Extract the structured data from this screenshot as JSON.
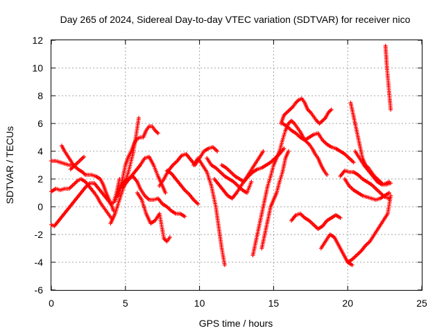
{
  "chart_data": {
    "type": "scatter",
    "title": "Day 265 of 2024, Sidereal Day-to-day VTEC variation (SDTVAR) for receiver nico",
    "xlabel": "GPS time / hours",
    "ylabel": "SDTVAR / TECUs",
    "xlim": [
      0,
      25
    ],
    "ylim": [
      -6,
      12
    ],
    "xticks": [
      0,
      5,
      10,
      15,
      20,
      25
    ],
    "yticks": [
      -6,
      -4,
      -2,
      0,
      2,
      4,
      6,
      8,
      10,
      12
    ],
    "xtick_labels": [
      "0",
      "5",
      "10",
      "15",
      "20",
      "25"
    ],
    "ytick_labels": [
      "-6",
      "-4",
      "-2",
      "0",
      "2",
      "4",
      "6",
      "8",
      "10",
      "12"
    ],
    "grid": true,
    "marker": "+",
    "color": "#ff0000",
    "series": [
      {
        "name": "s1",
        "x": [
          0.0,
          0.3,
          0.6,
          0.9,
          1.2,
          1.4
        ],
        "y": [
          3.3,
          3.3,
          3.2,
          3.1,
          3.0,
          3.0
        ]
      },
      {
        "name": "s2",
        "x": [
          0.7,
          0.9,
          1.2,
          1.5,
          1.8,
          2.1,
          2.3,
          2.7,
          3.0,
          3.3,
          3.5,
          3.7,
          3.9,
          4.1,
          4.2
        ],
        "y": [
          4.4,
          4.0,
          3.5,
          3.0,
          2.7,
          2.5,
          2.3,
          2.3,
          2.2,
          2.0,
          1.6,
          1.0,
          0.5,
          0.0,
          -0.3
        ]
      },
      {
        "name": "s3",
        "x": [
          1.3,
          1.6,
          1.9,
          2.2
        ],
        "y": [
          2.7,
          3.0,
          3.3,
          3.6
        ]
      },
      {
        "name": "s4",
        "x": [
          0.0,
          0.3,
          0.6,
          0.9,
          1.2,
          1.5,
          1.8,
          2.0,
          2.3,
          2.6,
          2.9,
          3.1,
          3.3,
          3.5,
          3.7,
          3.9,
          4.1
        ],
        "y": [
          1.1,
          1.3,
          1.2,
          1.3,
          1.3,
          1.6,
          1.9,
          2.0,
          1.8,
          1.4,
          1.0,
          0.7,
          0.3,
          0.0,
          -0.3,
          -0.6,
          -0.9
        ]
      },
      {
        "name": "s5",
        "x": [
          0.0,
          0.2,
          0.5,
          0.8,
          1.1,
          1.4,
          1.7,
          2.0,
          2.3,
          2.6,
          2.9,
          3.2,
          3.5,
          3.8,
          4.0,
          4.2,
          4.4,
          4.6
        ],
        "y": [
          -1.3,
          -1.4,
          -1.0,
          -0.6,
          -0.2,
          0.2,
          0.6,
          1.0,
          1.4,
          1.7,
          1.7,
          1.3,
          0.9,
          0.5,
          0.2,
          0.3,
          1.0,
          2.0
        ]
      },
      {
        "name": "s6",
        "x": [
          4.0,
          4.3,
          4.6,
          4.9,
          5.2,
          5.5,
          5.7,
          5.9
        ],
        "y": [
          -1.2,
          -0.5,
          0.5,
          1.5,
          2.5,
          3.8,
          5.0,
          6.4
        ]
      },
      {
        "name": "s7",
        "x": [
          4.3,
          4.6,
          4.9,
          5.2,
          5.5,
          5.8,
          6.0,
          6.3,
          6.6,
          6.9,
          7.2,
          7.5,
          7.8,
          8.1,
          8.4,
          8.7,
          9.0
        ],
        "y": [
          0.4,
          1.2,
          1.8,
          2.0,
          2.2,
          1.8,
          1.3,
          0.8,
          0.5,
          0.5,
          0.6,
          0.2,
          0.0,
          -0.3,
          -0.5,
          -0.5,
          -0.7
        ]
      },
      {
        "name": "s8",
        "x": [
          4.5,
          4.8,
          5.0,
          5.2,
          5.4,
          5.6,
          5.8,
          6.0,
          6.2,
          6.4,
          6.6,
          6.8,
          7.0,
          7.2
        ],
        "y": [
          0.8,
          2.0,
          3.0,
          3.6,
          4.0,
          4.6,
          4.9,
          5.0,
          5.0,
          5.5,
          5.8,
          5.8,
          5.5,
          5.3
        ]
      },
      {
        "name": "s9",
        "x": [
          4.8,
          5.1,
          5.4,
          5.7,
          6.0,
          6.3,
          6.6,
          6.9,
          7.2,
          7.5,
          7.7
        ],
        "y": [
          1.3,
          1.8,
          2.2,
          2.6,
          3.0,
          3.5,
          3.6,
          3.0,
          2.2,
          1.5,
          1.0
        ]
      },
      {
        "name": "s10",
        "x": [
          5.8,
          6.1,
          6.4,
          6.7,
          7.0,
          7.3,
          7.6,
          7.8,
          8.0
        ],
        "y": [
          1.0,
          0.5,
          -0.5,
          -1.2,
          -1.0,
          -0.5,
          -2.3,
          -2.5,
          -2.2
        ]
      },
      {
        "name": "s11",
        "x": [
          7.3,
          7.6,
          7.9,
          8.2,
          8.5,
          8.8,
          9.1,
          9.4,
          9.7,
          10.0,
          10.3,
          10.6,
          10.9,
          11.2
        ],
        "y": [
          1.5,
          2.0,
          2.6,
          3.0,
          3.3,
          3.7,
          3.8,
          3.4,
          3.0,
          3.5,
          4.0,
          4.2,
          4.3,
          4.0
        ]
      },
      {
        "name": "s12",
        "x": [
          7.8,
          8.1,
          8.4,
          8.7,
          9.0,
          9.3,
          9.6,
          9.9
        ],
        "y": [
          2.6,
          2.4,
          2.0,
          1.6,
          1.2,
          0.9,
          0.5,
          0.2
        ]
      },
      {
        "name": "s13",
        "x": [
          9.6,
          9.9,
          10.2,
          10.5,
          10.8,
          11.1,
          11.3,
          11.5,
          11.7
        ],
        "y": [
          3.0,
          3.5,
          3.0,
          2.5,
          1.5,
          0.0,
          -1.5,
          -3.0,
          -4.2
        ]
      },
      {
        "name": "s14",
        "x": [
          10.5,
          10.8,
          11.1,
          11.4,
          11.7,
          12.0,
          12.3,
          12.6,
          12.9,
          13.2,
          13.5
        ],
        "y": [
          3.5,
          3.0,
          2.8,
          2.5,
          2.2,
          2.0,
          1.8,
          1.5,
          1.2,
          1.0,
          1.8
        ]
      },
      {
        "name": "s15",
        "x": [
          11.0,
          11.3,
          11.6,
          11.9,
          12.2,
          12.5,
          12.8,
          13.1,
          13.4,
          13.7,
          14.0,
          14.3
        ],
        "y": [
          2.0,
          1.6,
          1.2,
          0.8,
          0.6,
          1.0,
          1.5,
          2.0,
          2.5,
          3.0,
          3.5,
          4.0
        ]
      },
      {
        "name": "s16",
        "x": [
          11.5,
          11.8,
          12.1,
          12.4,
          12.7,
          13.0,
          13.3,
          13.6,
          13.9,
          14.2,
          14.5,
          14.8,
          15.1,
          15.4,
          15.7
        ],
        "y": [
          3.0,
          2.8,
          2.5,
          2.2,
          2.0,
          1.8,
          2.2,
          2.5,
          2.7,
          2.8,
          3.0,
          3.2,
          3.5,
          3.8,
          4.2
        ]
      },
      {
        "name": "s17",
        "x": [
          13.6,
          13.8,
          14.0,
          14.2,
          14.4,
          14.6,
          14.8,
          15.0,
          15.2,
          15.4,
          15.6,
          15.8
        ],
        "y": [
          -3.5,
          -2.5,
          -1.5,
          -0.5,
          0.5,
          1.5,
          2.2,
          3.0,
          3.5,
          4.0,
          4.8,
          5.5
        ]
      },
      {
        "name": "s18",
        "x": [
          14.2,
          14.4,
          14.6,
          14.8,
          15.0,
          15.2,
          15.4,
          15.6,
          15.8,
          16.0
        ],
        "y": [
          -3.0,
          -2.0,
          -1.0,
          0.0,
          0.5,
          1.0,
          1.8,
          2.5,
          3.5,
          4.0
        ]
      },
      {
        "name": "s19",
        "x": [
          15.5,
          15.7,
          15.9,
          16.1,
          16.3,
          16.5,
          16.7,
          16.9,
          17.1,
          17.3,
          17.5,
          17.7,
          17.9,
          18.1,
          18.3,
          18.5,
          18.7,
          18.9
        ],
        "y": [
          6.0,
          6.6,
          6.8,
          7.0,
          7.2,
          7.5,
          7.7,
          7.8,
          7.5,
          7.0,
          6.8,
          6.5,
          6.2,
          6.0,
          6.2,
          6.4,
          6.8,
          7.0
        ]
      },
      {
        "name": "s20",
        "x": [
          15.6,
          15.9,
          16.2,
          16.5,
          16.8,
          17.1,
          17.4,
          17.7,
          18.0,
          18.3,
          18.6,
          18.9,
          19.2,
          19.5,
          19.8,
          20.1,
          20.4
        ],
        "y": [
          6.0,
          5.8,
          5.5,
          5.3,
          5.0,
          4.8,
          5.0,
          5.2,
          5.3,
          4.8,
          4.5,
          4.3,
          4.2,
          4.0,
          3.8,
          3.5,
          3.2
        ]
      },
      {
        "name": "s21",
        "x": [
          15.8,
          16.0,
          16.2,
          16.4,
          16.6,
          16.8,
          17.0,
          17.2,
          17.4,
          17.6,
          17.8,
          18.0,
          18.2,
          18.4,
          18.6
        ],
        "y": [
          5.5,
          6.0,
          6.2,
          6.0,
          5.7,
          5.4,
          5.0,
          4.7,
          4.5,
          4.2,
          3.8,
          3.5,
          3.0,
          2.6,
          2.3
        ]
      },
      {
        "name": "s22",
        "x": [
          16.2,
          16.5,
          16.8,
          17.1,
          17.4,
          17.7,
          18.0,
          18.3,
          18.6,
          18.9,
          19.2,
          19.5
        ],
        "y": [
          -1.0,
          -0.6,
          -0.5,
          -0.8,
          -1.0,
          -1.3,
          -1.6,
          -1.4,
          -1.0,
          -0.8,
          -0.6,
          -0.8
        ]
      },
      {
        "name": "s23",
        "x": [
          18.2,
          18.5,
          18.8,
          19.1,
          19.4,
          19.7,
          20.0,
          20.3
        ],
        "y": [
          -3.0,
          -2.5,
          -2.0,
          -2.2,
          -2.8,
          -3.4,
          -4.0,
          -4.2
        ]
      },
      {
        "name": "s24",
        "x": [
          19.5,
          19.8,
          20.1,
          20.4,
          20.7,
          21.0,
          21.3,
          21.6,
          21.9,
          22.2,
          22.5,
          22.8
        ],
        "y": [
          2.2,
          2.6,
          2.5,
          2.5,
          2.3,
          2.0,
          1.8,
          1.6,
          1.3,
          1.0,
          0.7,
          0.6
        ]
      },
      {
        "name": "s25",
        "x": [
          19.8,
          20.1,
          20.4,
          20.7,
          21.0,
          21.3,
          21.6,
          21.9,
          22.2,
          22.5,
          22.8
        ],
        "y": [
          2.0,
          1.5,
          1.2,
          1.0,
          0.8,
          0.7,
          0.6,
          0.5,
          0.6,
          0.8,
          1.0
        ]
      },
      {
        "name": "s26",
        "x": [
          20.0,
          20.3,
          20.6,
          20.9,
          21.2,
          21.5,
          21.8,
          22.1,
          22.4,
          22.7,
          22.9
        ],
        "y": [
          -4.0,
          -3.8,
          -3.5,
          -3.2,
          -2.8,
          -2.5,
          -2.0,
          -1.5,
          -1.0,
          -0.5,
          0.8
        ]
      },
      {
        "name": "s27",
        "x": [
          20.2,
          20.4,
          20.6,
          20.8,
          21.0,
          21.2,
          21.4,
          21.6,
          21.8,
          22.0,
          22.2,
          22.4,
          22.6,
          22.8
        ],
        "y": [
          7.5,
          6.5,
          5.5,
          4.5,
          3.5,
          3.0,
          2.8,
          2.5,
          2.2,
          2.0,
          1.8,
          1.6,
          1.7,
          1.8
        ]
      },
      {
        "name": "s28",
        "x": [
          20.5,
          20.8,
          21.1,
          21.4,
          21.7,
          22.0,
          22.3,
          22.6,
          22.9
        ],
        "y": [
          4.0,
          3.5,
          3.0,
          2.6,
          2.2,
          1.8,
          1.6,
          1.6,
          1.7
        ]
      },
      {
        "name": "s29",
        "x": [
          22.55,
          22.6,
          22.65,
          22.7,
          22.75,
          22.8,
          22.85,
          22.9
        ],
        "y": [
          11.6,
          10.8,
          10.0,
          9.4,
          8.8,
          8.2,
          7.6,
          7.0
        ]
      }
    ]
  }
}
